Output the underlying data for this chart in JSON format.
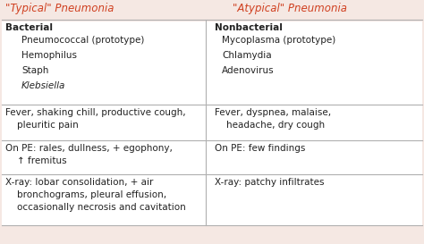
{
  "title_left": "\"Typical\" Pneumonia",
  "title_right": "\"Atypical\" Pneumonia",
  "title_color": "#d04020",
  "background_color": "#f5e8e3",
  "header_bold_left": "Bacterial",
  "header_bold_right": "Nonbacterial",
  "col1_items": [
    "Pneumococcal (prototype)",
    "Hemophilus",
    "Staph",
    "Klebsiella"
  ],
  "col2_items": [
    "Mycoplasma (prototype)",
    "Chlamydia",
    "Adenovirus",
    ""
  ],
  "row2_left": "Fever, shaking chill, productive cough,\n    pleuritic pain",
  "row2_right": "Fever, dyspnea, malaise,\n    headache, dry cough",
  "row3_left": "On PE: rales, dullness, + egophony,\n    ↑ fremitus",
  "row3_right": "On PE: few findings",
  "row4_left": "X-ray: lobar consolidation, + air\n    bronchograms, pleural effusion,\n    occasionally necrosis and cavitation",
  "row4_right": "X-ray: patchy infiltrates",
  "line_color": "#b0b0b0",
  "text_color": "#222222",
  "indent": "    ",
  "fs_title": 8.5,
  "fs_body": 7.5
}
